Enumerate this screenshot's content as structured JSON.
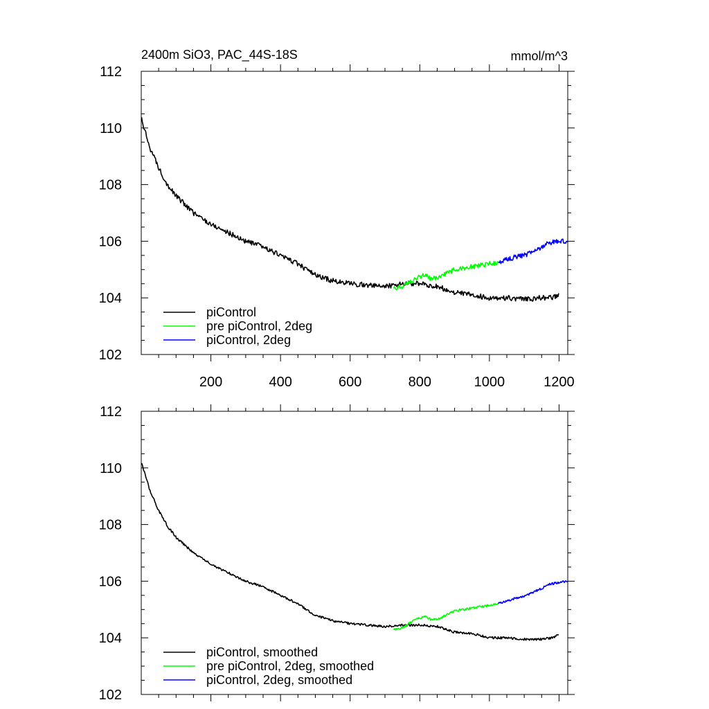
{
  "chart_data": [
    {
      "type": "line",
      "title": "2400m SiO3, PAC_44S-18S",
      "units": "mmol/m^3",
      "xlim": [
        0,
        1225
      ],
      "ylim": [
        102,
        112
      ],
      "xticks": [
        200,
        400,
        600,
        800,
        1000,
        1200
      ],
      "xtick_labels": [
        "200",
        "400",
        "600",
        "800",
        "1000",
        "1200"
      ],
      "yticks": [
        102,
        104,
        106,
        108,
        110,
        112
      ],
      "ytick_labels": [
        "102",
        "104",
        "106",
        "108",
        "110",
        "112"
      ],
      "legend_position": "bottom-left",
      "series": [
        {
          "name": "piControl",
          "color": "#000000",
          "points": [
            [
              1,
              110.3
            ],
            [
              10,
              109.9
            ],
            [
              25,
              109.3
            ],
            [
              50,
              108.6
            ],
            [
              75,
              108.0
            ],
            [
              100,
              107.6
            ],
            [
              150,
              107.0
            ],
            [
              200,
              106.6
            ],
            [
              250,
              106.3
            ],
            [
              300,
              106.0
            ],
            [
              350,
              105.8
            ],
            [
              400,
              105.5
            ],
            [
              450,
              105.2
            ],
            [
              500,
              104.8
            ],
            [
              550,
              104.6
            ],
            [
              600,
              104.5
            ],
            [
              650,
              104.45
            ],
            [
              700,
              104.4
            ],
            [
              750,
              104.5
            ],
            [
              800,
              104.5
            ],
            [
              850,
              104.4
            ],
            [
              900,
              104.2
            ],
            [
              950,
              104.1
            ],
            [
              1000,
              104.0
            ],
            [
              1050,
              104.0
            ],
            [
              1100,
              103.95
            ],
            [
              1150,
              104.0
            ],
            [
              1180,
              104.0
            ],
            [
              1200,
              104.1
            ]
          ]
        },
        {
          "name": "pre piControl, 2deg",
          "color": "#00ff00",
          "points": [
            [
              725,
              104.35
            ],
            [
              750,
              104.4
            ],
            [
              775,
              104.6
            ],
            [
              800,
              104.75
            ],
            [
              815,
              104.8
            ],
            [
              830,
              104.7
            ],
            [
              850,
              104.7
            ],
            [
              875,
              104.85
            ],
            [
              900,
              105.0
            ],
            [
              925,
              105.05
            ],
            [
              950,
              105.1
            ],
            [
              975,
              105.15
            ],
            [
              1000,
              105.2
            ],
            [
              1025,
              105.25
            ]
          ]
        },
        {
          "name": "piControl, 2deg",
          "color": "#0000ff",
          "points": [
            [
              1025,
              105.25
            ],
            [
              1050,
              105.35
            ],
            [
              1075,
              105.45
            ],
            [
              1100,
              105.5
            ],
            [
              1125,
              105.65
            ],
            [
              1150,
              105.8
            ],
            [
              1175,
              105.95
            ],
            [
              1200,
              106.0
            ],
            [
              1225,
              106.0
            ]
          ]
        }
      ]
    },
    {
      "type": "line",
      "title": "",
      "units": "",
      "xlim": [
        0,
        1225
      ],
      "ylim": [
        102,
        112
      ],
      "xticks": [
        200,
        400,
        600,
        800,
        1000,
        1200
      ],
      "xtick_labels": [],
      "yticks": [
        102,
        104,
        106,
        108,
        110,
        112
      ],
      "ytick_labels": [
        "102",
        "104",
        "106",
        "108",
        "110",
        "112"
      ],
      "legend_position": "bottom-left",
      "series": [
        {
          "name": "piControl, smoothed",
          "color": "#000000",
          "points": [
            [
              1,
              110.2
            ],
            [
              10,
              109.8
            ],
            [
              25,
              109.2
            ],
            [
              50,
              108.5
            ],
            [
              75,
              107.95
            ],
            [
              100,
              107.55
            ],
            [
              150,
              107.0
            ],
            [
              200,
              106.6
            ],
            [
              250,
              106.3
            ],
            [
              300,
              106.0
            ],
            [
              350,
              105.8
            ],
            [
              400,
              105.5
            ],
            [
              450,
              105.2
            ],
            [
              500,
              104.8
            ],
            [
              550,
              104.6
            ],
            [
              600,
              104.5
            ],
            [
              650,
              104.45
            ],
            [
              700,
              104.4
            ],
            [
              750,
              104.45
            ],
            [
              800,
              104.45
            ],
            [
              850,
              104.4
            ],
            [
              900,
              104.2
            ],
            [
              950,
              104.15
            ],
            [
              1000,
              104.0
            ],
            [
              1050,
              104.0
            ],
            [
              1100,
              103.95
            ],
            [
              1150,
              103.95
            ],
            [
              1180,
              104.0
            ],
            [
              1200,
              104.1
            ]
          ]
        },
        {
          "name": "pre piControl, 2deg, smoothed",
          "color": "#00ff00",
          "points": [
            [
              725,
              104.3
            ],
            [
              750,
              104.35
            ],
            [
              775,
              104.55
            ],
            [
              800,
              104.7
            ],
            [
              815,
              104.75
            ],
            [
              830,
              104.65
            ],
            [
              850,
              104.65
            ],
            [
              875,
              104.8
            ],
            [
              900,
              104.95
            ],
            [
              925,
              105.0
            ],
            [
              950,
              105.05
            ],
            [
              975,
              105.1
            ],
            [
              1000,
              105.15
            ],
            [
              1025,
              105.2
            ]
          ]
        },
        {
          "name": "piControl, 2deg, smoothed",
          "color": "#0000ff",
          "points": [
            [
              1025,
              105.2
            ],
            [
              1050,
              105.3
            ],
            [
              1075,
              105.4
            ],
            [
              1100,
              105.45
            ],
            [
              1125,
              105.6
            ],
            [
              1150,
              105.75
            ],
            [
              1175,
              105.9
            ],
            [
              1200,
              105.95
            ],
            [
              1225,
              106.0
            ]
          ]
        }
      ]
    }
  ]
}
